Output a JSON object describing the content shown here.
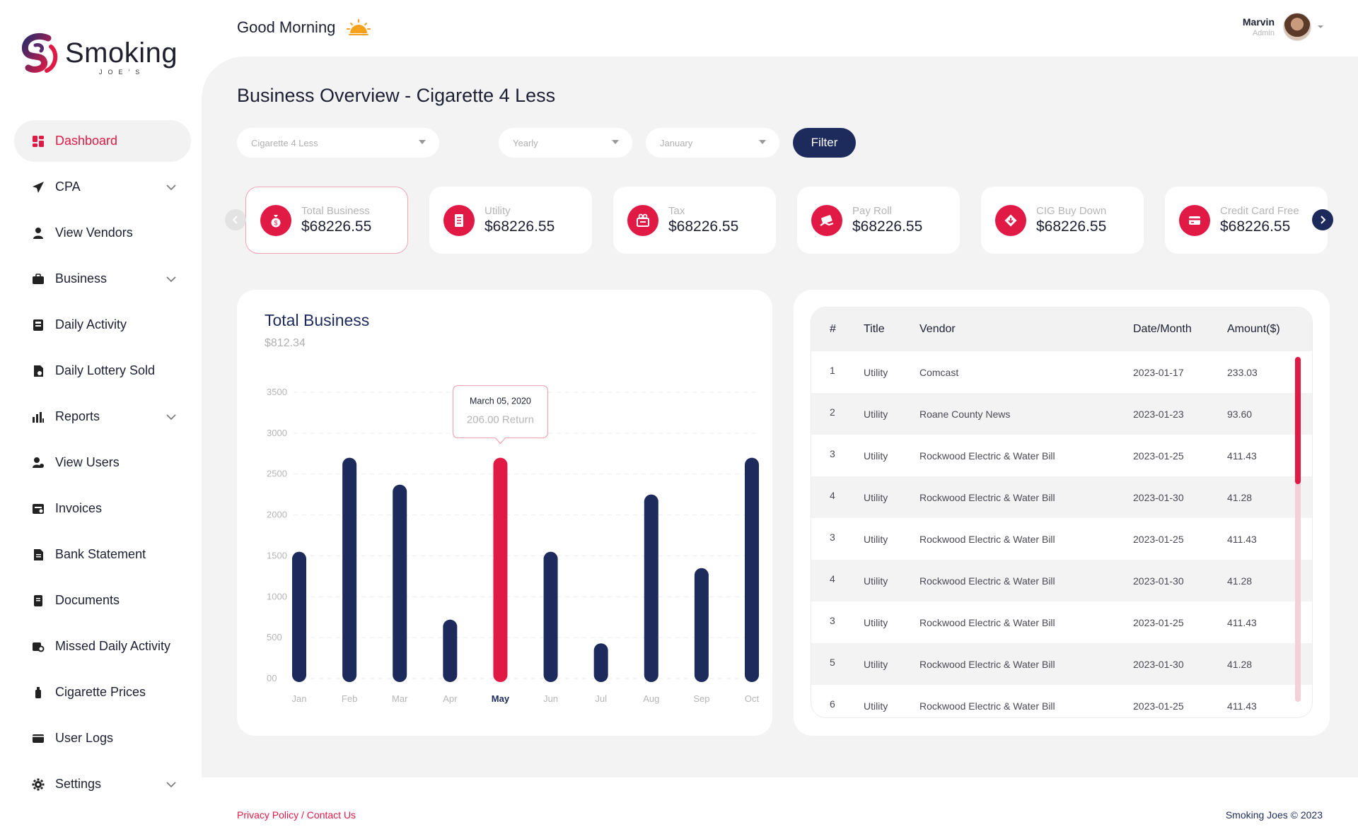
{
  "brand": {
    "name": "Smoking",
    "sub": "JOE'S"
  },
  "header": {
    "greeting": "Good Morning",
    "user_name": "Marvin",
    "user_role": "Admin"
  },
  "sidebar": {
    "items": [
      {
        "label": "Dashboard",
        "icon": "dashboard-icon",
        "active": true,
        "expandable": false
      },
      {
        "label": "CPA",
        "icon": "paper-plane-icon",
        "expandable": true
      },
      {
        "label": "View Vendors",
        "icon": "user-icon",
        "expandable": false
      },
      {
        "label": "Business",
        "icon": "briefcase-icon",
        "expandable": true
      },
      {
        "label": "Daily Activity",
        "icon": "register-icon",
        "expandable": false
      },
      {
        "label": "Daily Lottery Sold",
        "icon": "lottery-doc-icon",
        "expandable": false
      },
      {
        "label": "Reports",
        "icon": "chart-icon",
        "expandable": true
      },
      {
        "label": "View Users",
        "icon": "users-icon",
        "expandable": false
      },
      {
        "label": "Invoices",
        "icon": "invoice-icon",
        "expandable": false
      },
      {
        "label": "Bank Statement",
        "icon": "statement-icon",
        "expandable": false
      },
      {
        "label": "Documents",
        "icon": "document-icon",
        "expandable": false
      },
      {
        "label": "Missed Daily Activity",
        "icon": "missed-activity-icon",
        "expandable": false
      },
      {
        "label": "Cigarette Prices",
        "icon": "cigarette-icon",
        "expandable": false
      },
      {
        "label": "User Logs",
        "icon": "logs-icon",
        "expandable": false
      },
      {
        "label": "Settings",
        "icon": "gear-icon",
        "expandable": true
      }
    ]
  },
  "page": {
    "title": "Business Overview - Cigarette 4 Less"
  },
  "filters": {
    "store": "Cigarette 4 Less",
    "period": "Yearly",
    "month": "January",
    "button": "Filter"
  },
  "cards": [
    {
      "label": "Total Business",
      "value": "$68226.55",
      "icon": "money-bag-icon"
    },
    {
      "label": "Utility",
      "value": "$68226.55",
      "icon": "bill-icon"
    },
    {
      "label": "Tax",
      "value": "$68226.55",
      "icon": "tax-icon"
    },
    {
      "label": "Pay Roll",
      "value": "$68226.55",
      "icon": "payroll-icon"
    },
    {
      "label": "CIG Buy Down",
      "value": "$68226.55",
      "icon": "buy-down-icon"
    },
    {
      "label": "Credit Card Free",
      "value": "$68226.55",
      "icon": "credit-card-icon"
    }
  ],
  "chart_data": {
    "type": "bar",
    "title": "Total Business",
    "subtitle": "$812.34",
    "categories": [
      "Jan",
      "Feb",
      "Mar",
      "Apr",
      "May",
      "Jun",
      "Jul",
      "Aug",
      "Sep",
      "Oct"
    ],
    "values": [
      1550,
      2700,
      2370,
      720,
      2700,
      1550,
      430,
      2250,
      1350,
      2700
    ],
    "highlight_index": 4,
    "y_ticks": [
      "00",
      "500",
      "1000",
      "1500",
      "2000",
      "2500",
      "3000",
      "3500"
    ],
    "ylim": [
      0,
      3500
    ],
    "grid": true,
    "colors": {
      "bar": "#1c2a5c",
      "highlight": "#e11a45"
    },
    "tooltip": {
      "date": "March 05, 2020",
      "text": "206.00 Return"
    }
  },
  "table": {
    "headers": [
      "#",
      "Title",
      "Vendor",
      "Date/Month",
      "Amount($)"
    ],
    "rows": [
      [
        "1",
        "Utility",
        "Comcast",
        "2023-01-17",
        "233.03"
      ],
      [
        "2",
        "Utility",
        "Roane County News",
        "2023-01-23",
        "93.60"
      ],
      [
        "3",
        "Utility",
        "Rockwood Electric & Water Bill",
        "2023-01-25",
        "411.43"
      ],
      [
        "4",
        "Utility",
        "Rockwood Electric & Water Bill",
        "2023-01-30",
        "41.28"
      ],
      [
        "3",
        "Utility",
        "Rockwood Electric & Water Bill",
        "2023-01-25",
        "411.43"
      ],
      [
        "4",
        "Utility",
        "Rockwood Electric & Water Bill",
        "2023-01-30",
        "41.28"
      ],
      [
        "3",
        "Utility",
        "Rockwood Electric & Water Bill",
        "2023-01-25",
        "411.43"
      ],
      [
        "5",
        "Utility",
        "Rockwood Electric & Water Bill",
        "2023-01-30",
        "41.28"
      ],
      [
        "6",
        "Utility",
        "Rockwood Electric & Water Bill",
        "2023-01-25",
        "411.43"
      ]
    ]
  },
  "footer": {
    "links": "Privacy Policy / Contact Us",
    "copyright": "Smoking Joes © 2023"
  },
  "colors": {
    "accent": "#e11a45",
    "navy": "#1c2a5c"
  }
}
